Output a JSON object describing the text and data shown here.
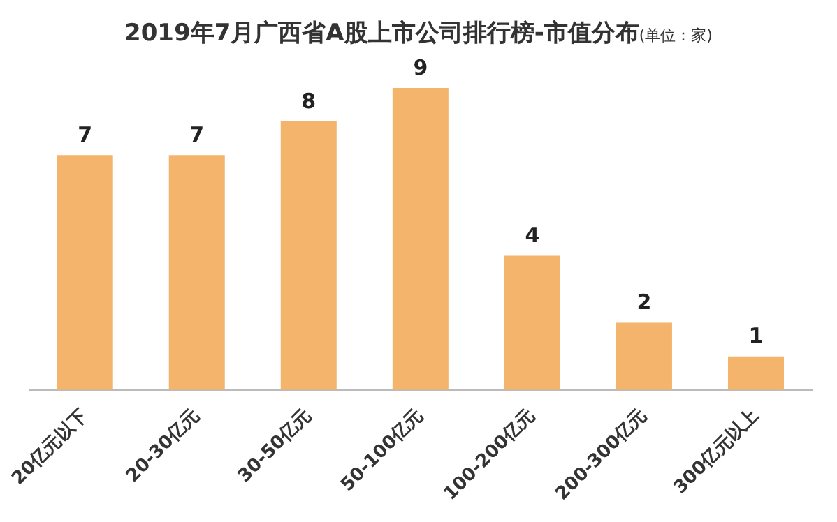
{
  "chart_data": {
    "type": "bar",
    "title": "2019年7月广西省A股上市公司排行榜-市值分布",
    "subtitle": "(单位：家)",
    "categories": [
      "20亿元以下",
      "20-30亿元",
      "30-50亿元",
      "50-100亿元",
      "100-200亿元",
      "200-300亿元",
      "300亿元以上"
    ],
    "values": [
      7,
      7,
      8,
      9,
      4,
      2,
      1
    ],
    "color": "#f4b46c",
    "data_labels": true,
    "grid": false,
    "legend": false
  }
}
